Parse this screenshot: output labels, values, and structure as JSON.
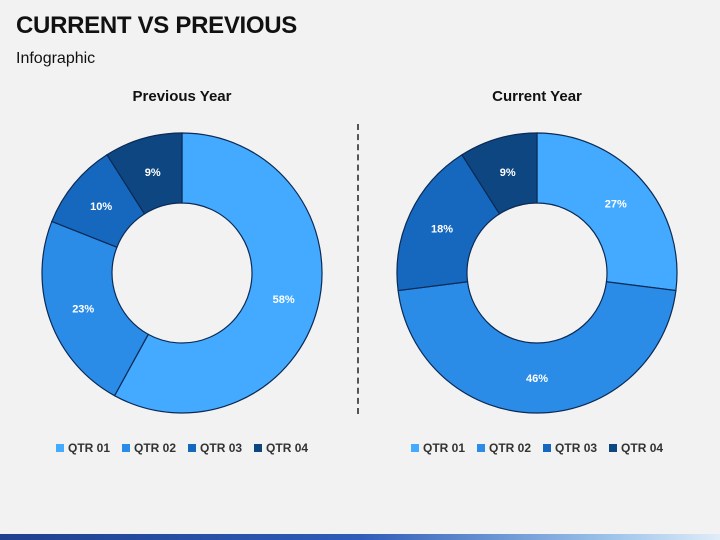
{
  "title": "CURRENT VS PREVIOUS",
  "subtitle": "Infographic",
  "colors": {
    "QTR 01": "#44aaff",
    "QTR 02": "#2b8ce8",
    "QTR 03": "#1668bf",
    "QTR 04": "#0d4680",
    "text_light": "#ffffff",
    "text_dark": "#0d2b4a"
  },
  "chart_data": [
    {
      "type": "pie",
      "title": "Previous Year",
      "categories": [
        "QTR 01",
        "QTR 02",
        "QTR 03",
        "QTR 04"
      ],
      "values": [
        58,
        23,
        10,
        9
      ],
      "labels": [
        "58%",
        "23%",
        "10%",
        "9%"
      ],
      "legend": "bottom",
      "donut": true
    },
    {
      "type": "pie",
      "title": "Current Year",
      "categories": [
        "QTR 01",
        "QTR 02",
        "QTR 03",
        "QTR 04"
      ],
      "values": [
        27,
        46,
        18,
        9
      ],
      "labels": [
        "27%",
        "46%",
        "18%",
        "9%"
      ],
      "legend": "bottom",
      "donut": true
    }
  ]
}
